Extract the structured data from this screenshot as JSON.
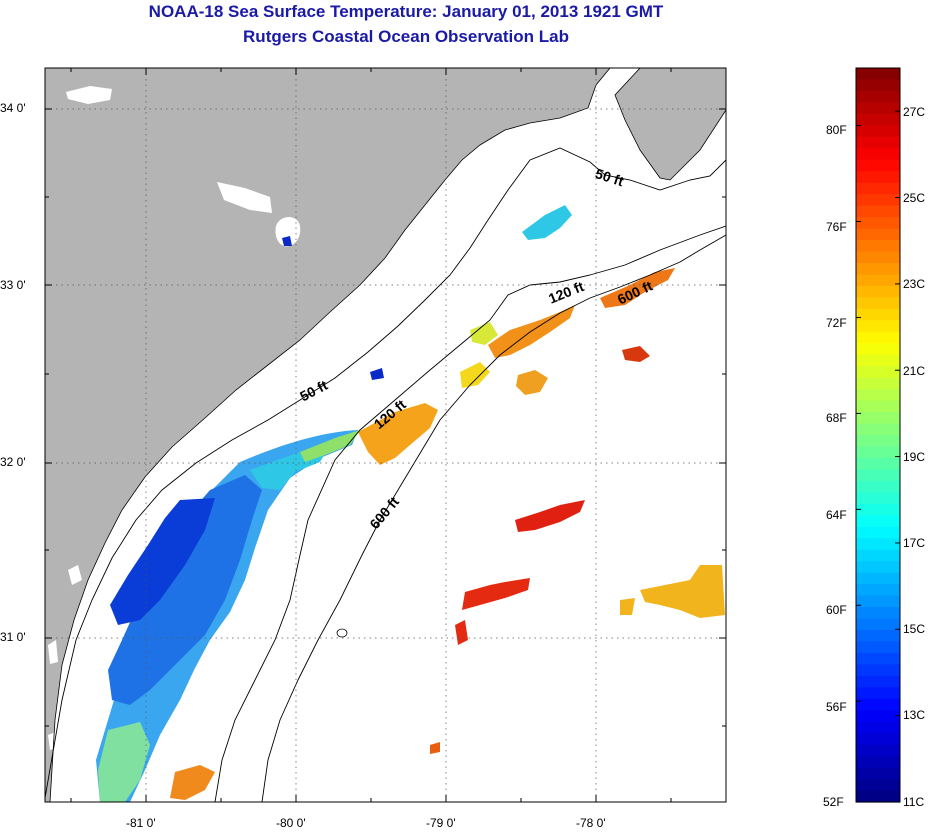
{
  "title": "NOAA-18 Sea Surface Temperature:  January 01, 2013 1921 GMT",
  "subtitle": "Rutgers Coastal Ocean Observation Lab",
  "colors": {
    "title": "#1a1aa6",
    "land": "#b4b4b4",
    "ocean": "#ffffff"
  },
  "map": {
    "lat_labels": [
      "34 0'",
      "33 0'",
      "32 0'",
      "31 0'"
    ],
    "lon_labels": [
      "-81 0'",
      "-80 0'",
      "-79 0'",
      "-78 0'"
    ],
    "isobaths": [
      {
        "id": "c50a",
        "label": "50 ft"
      },
      {
        "id": "c50b",
        "label": "50 ft"
      },
      {
        "id": "c120a",
        "label": "120 ft"
      },
      {
        "id": "c120b",
        "label": "120 ft"
      },
      {
        "id": "c600a",
        "label": "600 ft"
      },
      {
        "id": "c600b",
        "label": "600 ft"
      }
    ]
  },
  "colorbar": {
    "min_c": 11,
    "max_c": 28,
    "celsius_labels": [
      "27C",
      "25C",
      "23C",
      "21C",
      "19C",
      "17C",
      "15C",
      "13C",
      "11C"
    ],
    "fahrenheit_labels": [
      "80F",
      "76F",
      "72F",
      "68F",
      "64F",
      "60F",
      "56F",
      "52F"
    ]
  }
}
